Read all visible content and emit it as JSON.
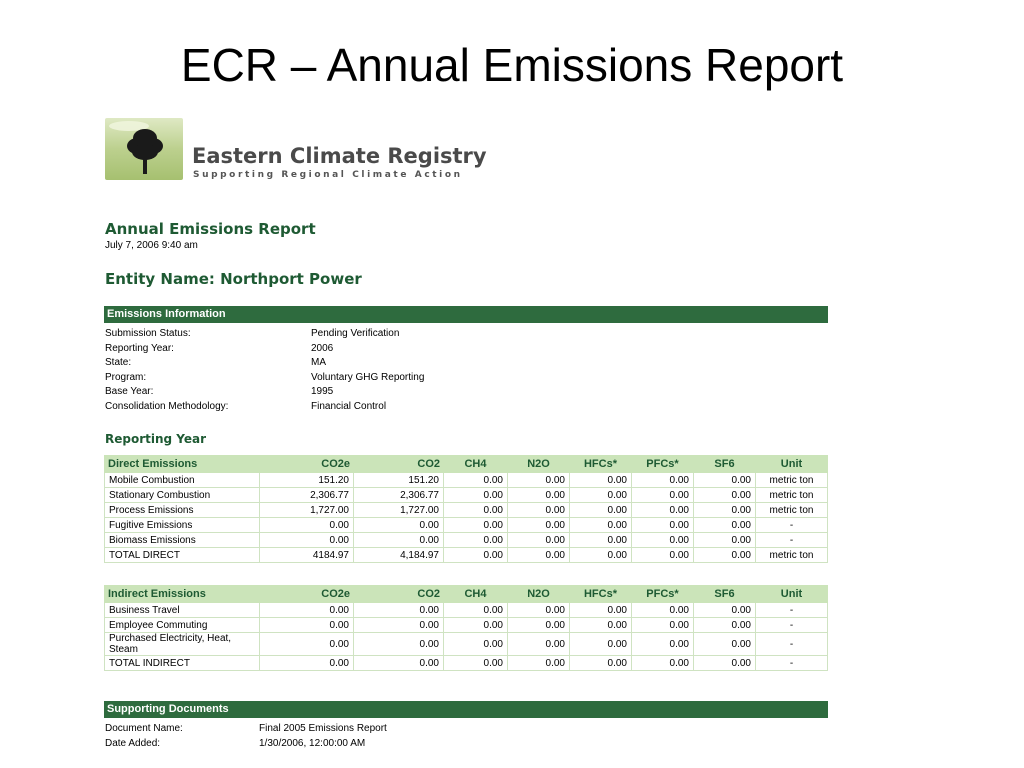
{
  "slide": {
    "title": "ECR – Annual Emissions Report"
  },
  "logo": {
    "name": "Eastern Climate Registry",
    "tagline": "Supporting Regional Climate Action"
  },
  "report": {
    "title": "Annual Emissions Report",
    "date": "July 7, 2006 9:40 am",
    "entity": "Entity Name:  Northport Power"
  },
  "emissions_info": {
    "header": "Emissions Information",
    "rows": [
      {
        "label": "Submission Status:",
        "value": "Pending Verification"
      },
      {
        "label": "Reporting Year:",
        "value": "2006"
      },
      {
        "label": "State:",
        "value": "MA"
      },
      {
        "label": "Program:",
        "value": "Voluntary GHG Reporting"
      },
      {
        "label": "Base Year:",
        "value": "1995"
      },
      {
        "label": "Consolidation Methodology:",
        "value": "Financial Control"
      }
    ]
  },
  "reporting_year_label": "Reporting Year",
  "columns": [
    "CO2e",
    "CO2",
    "CH4",
    "N2O",
    "HFCs*",
    "PFCs*",
    "SF6",
    "Unit"
  ],
  "direct": {
    "header": "Direct Emissions",
    "rows": [
      {
        "name": "Mobile Combustion",
        "values": [
          "151.20",
          "151.20",
          "0.00",
          "0.00",
          "0.00",
          "0.00",
          "0.00",
          "metric ton"
        ]
      },
      {
        "name": "Stationary Combustion",
        "values": [
          "2,306.77",
          "2,306.77",
          "0.00",
          "0.00",
          "0.00",
          "0.00",
          "0.00",
          "metric ton"
        ]
      },
      {
        "name": "Process Emissions",
        "values": [
          "1,727.00",
          "1,727.00",
          "0.00",
          "0.00",
          "0.00",
          "0.00",
          "0.00",
          "metric ton"
        ]
      },
      {
        "name": "Fugitive Emissions",
        "values": [
          "0.00",
          "0.00",
          "0.00",
          "0.00",
          "0.00",
          "0.00",
          "0.00",
          "-"
        ]
      },
      {
        "name": "Biomass Emissions",
        "values": [
          "0.00",
          "0.00",
          "0.00",
          "0.00",
          "0.00",
          "0.00",
          "0.00",
          "-"
        ]
      },
      {
        "name": "TOTAL DIRECT",
        "values": [
          "4184.97",
          "4,184.97",
          "0.00",
          "0.00",
          "0.00",
          "0.00",
          "0.00",
          "metric ton"
        ]
      }
    ]
  },
  "indirect": {
    "header": "Indirect Emissions",
    "rows": [
      {
        "name": "Business Travel",
        "values": [
          "0.00",
          "0.00",
          "0.00",
          "0.00",
          "0.00",
          "0.00",
          "0.00",
          "-"
        ]
      },
      {
        "name": "Employee Commuting",
        "values": [
          "0.00",
          "0.00",
          "0.00",
          "0.00",
          "0.00",
          "0.00",
          "0.00",
          "-"
        ]
      },
      {
        "name": "Purchased Electricity, Heat, Steam",
        "values": [
          "0.00",
          "0.00",
          "0.00",
          "0.00",
          "0.00",
          "0.00",
          "0.00",
          "-"
        ]
      },
      {
        "name": "TOTAL INDIRECT",
        "values": [
          "0.00",
          "0.00",
          "0.00",
          "0.00",
          "0.00",
          "0.00",
          "0.00",
          "-"
        ]
      }
    ]
  },
  "supporting": {
    "header": "Supporting Documents",
    "rows": [
      {
        "label": "Document Name:",
        "value": "Final 2005 Emissions Report"
      },
      {
        "label": "Date Added:",
        "value": "1/30/2006, 12:00:00 AM"
      }
    ]
  }
}
